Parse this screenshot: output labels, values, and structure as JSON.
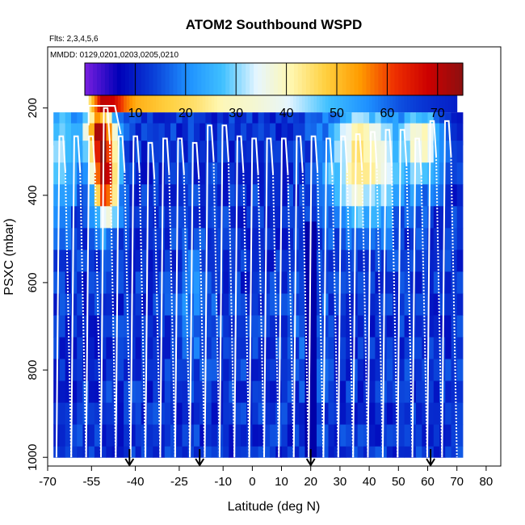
{
  "chart_data": {
    "type": "heatmap",
    "title": "ATOM2 Southbound WSPD",
    "flights_note": "Flts: 2,3,4,5,6",
    "dates_note": "MMDD: 0129,0201,0203,0205,0210",
    "xlabel": "Latitude (deg N)",
    "ylabel": "PSXC (mbar)",
    "xlim": [
      -70,
      85
    ],
    "ylim": [
      1020,
      60
    ],
    "x_ticks": [
      -70,
      -55,
      -40,
      -25,
      -10,
      0,
      10,
      20,
      30,
      40,
      50,
      60,
      70,
      80
    ],
    "y_ticks": [
      200,
      400,
      600,
      800,
      1000
    ],
    "colorbar": {
      "label_values": [
        10,
        20,
        30,
        40,
        50,
        60,
        70
      ],
      "range": [
        0,
        75
      ],
      "colors": [
        "#7a1fe0",
        "#0000b8",
        "#0a3fd8",
        "#1e90ff",
        "#3fc0ff",
        "#e6f6ff",
        "#fff7b0",
        "#ffd040",
        "#ff9c00",
        "#ee3000",
        "#cc0000",
        "#8c1010"
      ]
    },
    "grid": {
      "lat_start": -68,
      "lat_step": 2,
      "n_lat": 70,
      "pressure_levels": [
        210,
        260,
        300,
        350,
        400,
        450,
        500,
        550,
        600,
        650,
        700,
        750,
        800,
        850,
        900,
        950,
        1000
      ],
      "pressure_step": 50
    },
    "jet_band": {
      "pressure_range": [
        160,
        210
      ],
      "lat_range": [
        -56,
        70
      ],
      "lat_values": [
        -56,
        -52,
        -48,
        -44,
        -40,
        -30,
        -20,
        -10,
        0,
        10,
        20,
        30,
        40,
        50,
        60,
        70
      ],
      "wspd_values": [
        45,
        70,
        68,
        58,
        52,
        48,
        45,
        40,
        38,
        35,
        30,
        25,
        20,
        15,
        12,
        10
      ]
    },
    "missing_below": {
      "lat_range": [
        18,
        22
      ],
      "pressure_start": 460
    },
    "wind_structure": {
      "background_wspd": 12,
      "jets": [
        {
          "lat": -52,
          "pressure": 260,
          "peak": 55,
          "lat_width": 5,
          "p_width": 90
        },
        {
          "lat": -50,
          "pressure": 380,
          "peak": 48,
          "lat_width": 4,
          "p_width": 90
        },
        {
          "lat": 38,
          "pressure": 320,
          "peak": 32,
          "lat_width": 12,
          "p_width": 140
        },
        {
          "lat": 58,
          "pressure": 280,
          "peak": 26,
          "lat_width": 6,
          "p_width": 100
        },
        {
          "lat": -65,
          "pressure": 300,
          "peak": 22,
          "lat_width": 4,
          "p_width": 150
        },
        {
          "lat": -20,
          "pressure": 650,
          "peak": 8,
          "lat_width": 6,
          "p_width": 150
        },
        {
          "lat": 20,
          "pressure": 700,
          "peak": 6,
          "lat_width": 6,
          "p_width": 150
        }
      ]
    },
    "flight_profiles": {
      "lat_start": -67,
      "lat_end": 70,
      "top_pressures_mbar": [
        265,
        265,
        265,
        200,
        265,
        265,
        280,
        270,
        270,
        280,
        240,
        240,
        265,
        270,
        270,
        270,
        265,
        265,
        270,
        265,
        260,
        255,
        250,
        250,
        270,
        230,
        230
      ]
    },
    "arrows_lat": [
      -42,
      -18,
      20,
      61
    ]
  }
}
